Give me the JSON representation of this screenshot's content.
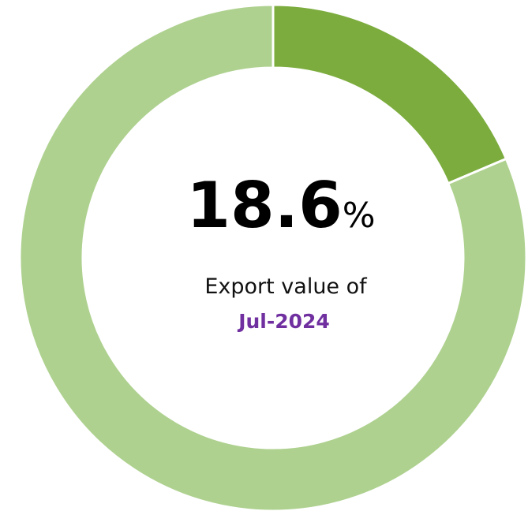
{
  "chart_data": {
    "type": "donut",
    "categories": [
      null,
      null
    ],
    "values": [
      18.6,
      81.4
    ],
    "colors": [
      "#7cac3e",
      "#aed18f"
    ],
    "unit": "%",
    "subtitle": "Export value of",
    "period": "Jul-2024"
  }
}
